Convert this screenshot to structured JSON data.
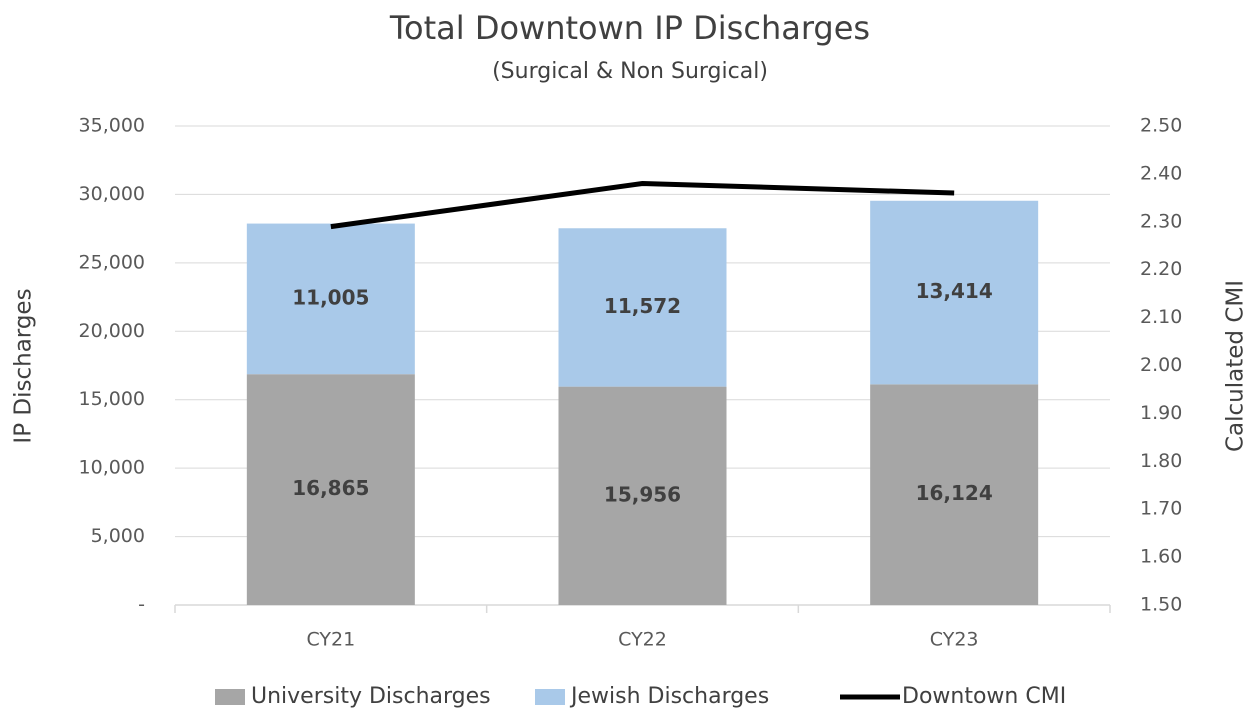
{
  "chart_data": {
    "type": "stacked-bar-line",
    "title": "Total Downtown IP Discharges",
    "subtitle": "(Surgical & Non Surgical)",
    "y_label": "IP Discharges",
    "y2_label": "Calculated CMI",
    "categories": [
      "CY21",
      "CY22",
      "CY23"
    ],
    "series": [
      {
        "name": "University Discharges",
        "color": "#a6a6a6",
        "type": "bar",
        "values": [
          16865,
          15956,
          16124
        ],
        "value_labels": [
          "16,865",
          "15,956",
          "16,124"
        ]
      },
      {
        "name": "Jewish Discharges",
        "color": "#a9c9e9",
        "type": "bar",
        "values": [
          11005,
          11572,
          13414
        ],
        "value_labels": [
          "11,005",
          "11,572",
          "13,414"
        ]
      },
      {
        "name": "Downtown CMI",
        "color": "#000000",
        "type": "line",
        "axis": "y2",
        "values": [
          2.29,
          2.38,
          2.36
        ]
      }
    ],
    "ylim": [
      0,
      35000
    ],
    "yticks": [
      {
        "value": 0,
        "label": "-"
      },
      {
        "value": 5000,
        "label": "5,000"
      },
      {
        "value": 10000,
        "label": "10,000"
      },
      {
        "value": 15000,
        "label": "15,000"
      },
      {
        "value": 20000,
        "label": "20,000"
      },
      {
        "value": 25000,
        "label": "25,000"
      },
      {
        "value": 30000,
        "label": "30,000"
      },
      {
        "value": 35000,
        "label": "35,000"
      }
    ],
    "y2lim": [
      1.5,
      2.5
    ],
    "y2ticks": [
      {
        "value": 1.5,
        "label": "1.50"
      },
      {
        "value": 1.6,
        "label": "1.60"
      },
      {
        "value": 1.7,
        "label": "1.70"
      },
      {
        "value": 1.8,
        "label": "1.80"
      },
      {
        "value": 1.9,
        "label": "1.90"
      },
      {
        "value": 2.0,
        "label": "2.00"
      },
      {
        "value": 2.1,
        "label": "2.10"
      },
      {
        "value": 2.2,
        "label": "2.20"
      },
      {
        "value": 2.3,
        "label": "2.30"
      },
      {
        "value": 2.4,
        "label": "2.40"
      },
      {
        "value": 2.5,
        "label": "2.50"
      }
    ],
    "grid": true,
    "legend": "bottom"
  }
}
